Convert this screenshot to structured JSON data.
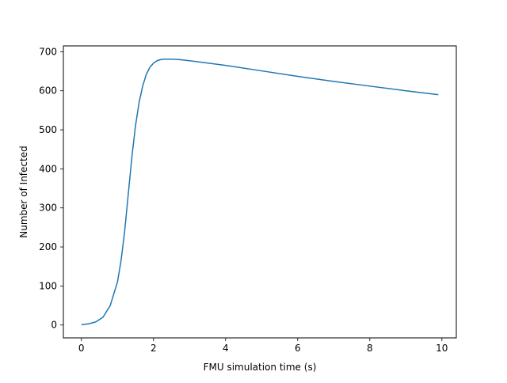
{
  "chart_data": {
    "type": "line",
    "title": "",
    "xlabel": "FMU simulation time (s)",
    "ylabel": "Number of Infected",
    "xlim": [
      -0.5,
      10.4
    ],
    "ylim": [
      -33,
      715
    ],
    "xticks": [
      0,
      2,
      4,
      6,
      8,
      10
    ],
    "yticks": [
      0,
      100,
      200,
      300,
      400,
      500,
      600,
      700
    ],
    "grid": false,
    "series": [
      {
        "color": "#1f77b4",
        "x": [
          0,
          0.2,
          0.4,
          0.6,
          0.8,
          1.0,
          1.1,
          1.2,
          1.3,
          1.4,
          1.5,
          1.6,
          1.7,
          1.8,
          1.9,
          2.0,
          2.1,
          2.2,
          2.3,
          2.4,
          2.5,
          2.7,
          3.0,
          4.0,
          5.0,
          6.0,
          7.0,
          8.0,
          9.0,
          9.9
        ],
        "y": [
          1,
          3,
          8,
          20,
          50,
          110,
          165,
          240,
          335,
          430,
          510,
          570,
          612,
          642,
          660,
          671,
          677,
          680,
          681,
          681,
          681,
          680,
          677,
          665,
          651,
          637,
          624,
          612,
          600,
          590
        ]
      }
    ]
  }
}
